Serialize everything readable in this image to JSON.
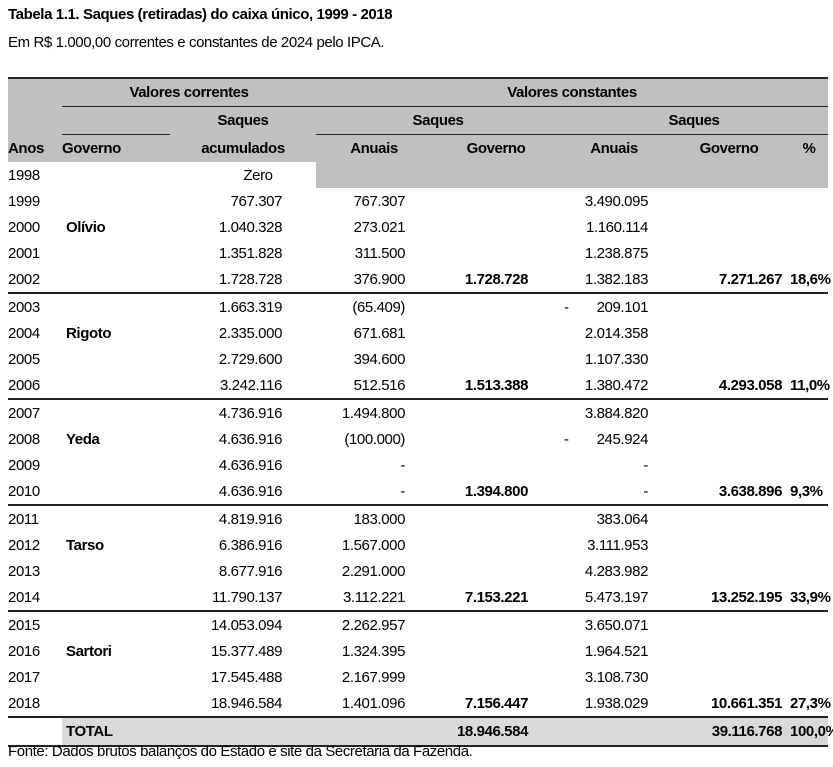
{
  "title": "Tabela 1.1. Saques (retiradas) do caixa único, 1999 - 2018",
  "subtitle": "Em R$ 1.000,00 correntes e constantes de 2024 pelo IPCA.",
  "header": {
    "valores_correntes": "Valores correntes",
    "valores_constantes": "Valores constantes",
    "saques": "Saques",
    "saques_const_1": "Saques",
    "saques_const_2": "Saques",
    "anos": "Anos",
    "governo": "Governo",
    "acumulados": "acumulados",
    "anuais": "Anuais",
    "governo_corr": "Governo",
    "anuais_const": "Anuais",
    "governo_const": "Governo",
    "pct": "%"
  },
  "rows": [
    [
      "1998",
      "",
      "Zero",
      "",
      "",
      "",
      "",
      ""
    ],
    [
      "1999",
      "",
      "767.307",
      "767.307",
      "",
      "3.490.095",
      "",
      ""
    ],
    [
      "2000",
      "Olívio",
      "1.040.328",
      "273.021",
      "",
      "1.160.114",
      "",
      ""
    ],
    [
      "2001",
      "",
      "1.351.828",
      "311.500",
      "",
      "1.238.875",
      "",
      ""
    ],
    [
      "2002",
      "",
      "1.728.728",
      "376.900",
      "1.728.728",
      "1.382.183",
      "7.271.267",
      "18,6%"
    ],
    [
      "2003",
      "",
      "1.663.319",
      "(65.409)",
      "",
      "- 209.101",
      "",
      ""
    ],
    [
      "2004",
      "Rigoto",
      "2.335.000",
      "671.681",
      "",
      "2.014.358",
      "",
      ""
    ],
    [
      "2005",
      "",
      "2.729.600",
      "394.600",
      "",
      "1.107.330",
      "",
      ""
    ],
    [
      "2006",
      "",
      "3.242.116",
      "512.516",
      "1.513.388",
      "1.380.472",
      "4.293.058",
      "11,0%"
    ],
    [
      "2007",
      "",
      "4.736.916",
      "1.494.800",
      "",
      "3.884.820",
      "",
      ""
    ],
    [
      "2008",
      "Yeda",
      "4.636.916",
      "(100.000)",
      "",
      "- 245.924",
      "",
      ""
    ],
    [
      "2009",
      "",
      "4.636.916",
      "-",
      "",
      "-",
      "",
      ""
    ],
    [
      "2010",
      "",
      "4.636.916",
      "-",
      "1.394.800",
      "-",
      "3.638.896",
      "9,3%"
    ],
    [
      "2011",
      "",
      "4.819.916",
      "183.000",
      "",
      "383.064",
      "",
      ""
    ],
    [
      "2012",
      "Tarso",
      "6.386.916",
      "1.567.000",
      "",
      "3.111.953",
      "",
      ""
    ],
    [
      "2013",
      "",
      "8.677.916",
      "2.291.000",
      "",
      "4.283.982",
      "",
      ""
    ],
    [
      "2014",
      "",
      "11.790.137",
      "3.112.221",
      "7.153.221",
      "5.473.197",
      "13.252.195",
      "33,9%"
    ],
    [
      "2015",
      "",
      "14.053.094",
      "2.262.957",
      "",
      "3.650.071",
      "",
      ""
    ],
    [
      "2016",
      "Sartori",
      "15.377.489",
      "1.324.395",
      "",
      "1.964.521",
      "",
      ""
    ],
    [
      "2017",
      "",
      "17.545.488",
      "2.167.999",
      "",
      "3.108.730",
      "",
      ""
    ],
    [
      "2018",
      "",
      "18.946.584",
      "1.401.096",
      "7.156.447",
      "1.938.029",
      "10.661.351",
      "27,3%"
    ]
  ],
  "total": {
    "label": "TOTAL",
    "governo_corr": "18.946.584",
    "governo_const": "39.116.768",
    "pct": "100,0%"
  },
  "footer": "Fonte: Dados brutos balanços do Estado e site da Secretaria da Fazenda."
}
